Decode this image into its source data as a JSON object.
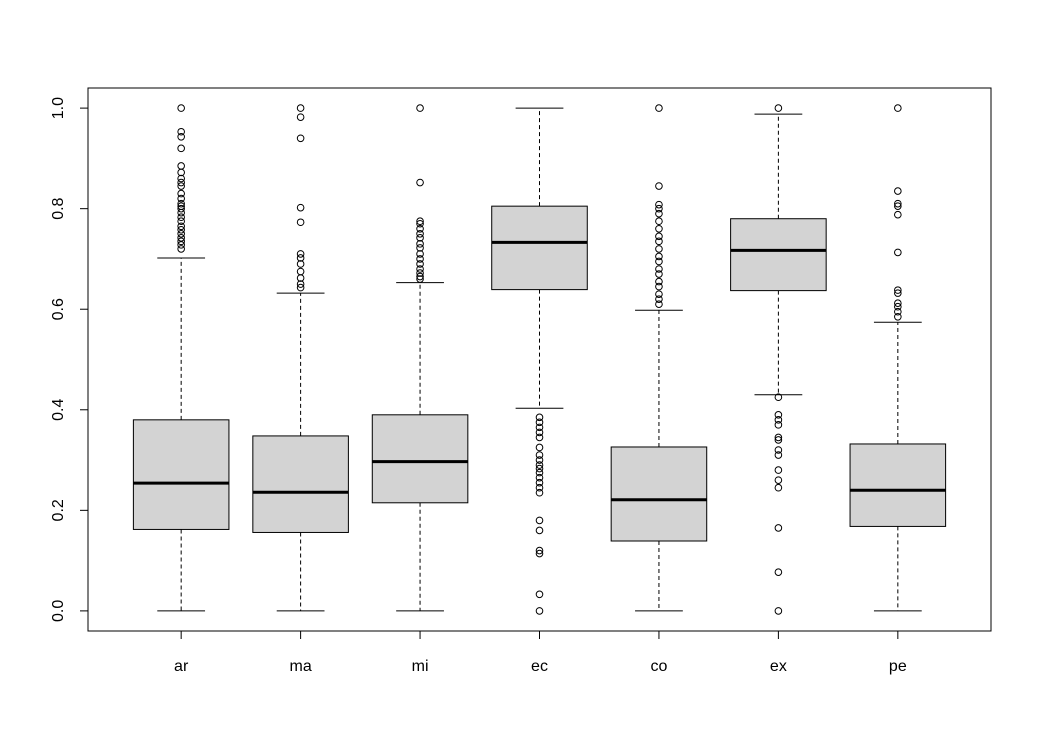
{
  "chart_data": {
    "type": "boxplot",
    "title": "",
    "xlabel": "",
    "ylabel": "",
    "ylim": [
      -0.04,
      1.04
    ],
    "y_ticks": [
      "0.0",
      "0.2",
      "0.4",
      "0.6",
      "0.8",
      "1.0"
    ],
    "y_tick_values": [
      0.0,
      0.2,
      0.4,
      0.6,
      0.8,
      1.0
    ],
    "grid": false,
    "legend": "none",
    "box_fill": "#d3d3d3",
    "categories": [
      "ar",
      "ma",
      "mi",
      "ec",
      "co",
      "ex",
      "pe"
    ],
    "boxes": [
      {
        "label": "ar",
        "whisker_low": 0.0,
        "q1": 0.162,
        "median": 0.254,
        "q3": 0.38,
        "whisker_high": 0.702,
        "outliers": [
          0.72,
          0.728,
          0.735,
          0.742,
          0.75,
          0.758,
          0.765,
          0.775,
          0.783,
          0.792,
          0.8,
          0.805,
          0.81,
          0.82,
          0.83,
          0.845,
          0.852,
          0.86,
          0.872,
          0.885,
          0.92,
          0.943,
          0.953,
          1.0
        ]
      },
      {
        "label": "ma",
        "whisker_low": 0.0,
        "q1": 0.156,
        "median": 0.236,
        "q3": 0.348,
        "whisker_high": 0.632,
        "outliers": [
          0.643,
          0.65,
          0.662,
          0.675,
          0.69,
          0.702,
          0.71,
          0.773,
          0.802,
          0.94,
          0.982,
          1.0
        ]
      },
      {
        "label": "mi",
        "whisker_low": 0.0,
        "q1": 0.215,
        "median": 0.297,
        "q3": 0.39,
        "whisker_high": 0.653,
        "outliers": [
          0.66,
          0.665,
          0.672,
          0.68,
          0.69,
          0.7,
          0.71,
          0.722,
          0.73,
          0.742,
          0.75,
          0.76,
          0.77,
          0.775,
          0.852,
          1.0
        ]
      },
      {
        "label": "ec",
        "whisker_low": 0.403,
        "q1": 0.639,
        "median": 0.733,
        "q3": 0.805,
        "whisker_high": 1.0,
        "outliers": [
          0.0,
          0.033,
          0.114,
          0.12,
          0.16,
          0.18,
          0.235,
          0.245,
          0.255,
          0.265,
          0.275,
          0.283,
          0.29,
          0.3,
          0.31,
          0.325,
          0.345,
          0.355,
          0.365,
          0.375,
          0.385
        ]
      },
      {
        "label": "co",
        "whisker_low": 0.0,
        "q1": 0.139,
        "median": 0.221,
        "q3": 0.326,
        "whisker_high": 0.598,
        "outliers": [
          0.61,
          0.62,
          0.63,
          0.645,
          0.655,
          0.67,
          0.68,
          0.695,
          0.705,
          0.72,
          0.735,
          0.745,
          0.76,
          0.775,
          0.79,
          0.8,
          0.808,
          0.845,
          1.0
        ]
      },
      {
        "label": "ex",
        "whisker_low": 0.43,
        "q1": 0.637,
        "median": 0.717,
        "q3": 0.78,
        "whisker_high": 0.988,
        "outliers": [
          0.0,
          0.077,
          0.165,
          0.245,
          0.26,
          0.28,
          0.31,
          0.32,
          0.34,
          0.345,
          0.37,
          0.38,
          0.39,
          0.425,
          1.0
        ]
      },
      {
        "label": "pe",
        "whisker_low": 0.0,
        "q1": 0.168,
        "median": 0.24,
        "q3": 0.332,
        "whisker_high": 0.574,
        "outliers": [
          0.585,
          0.595,
          0.605,
          0.612,
          0.632,
          0.638,
          0.713,
          0.788,
          0.805,
          0.81,
          0.835,
          1.0
        ]
      }
    ]
  }
}
